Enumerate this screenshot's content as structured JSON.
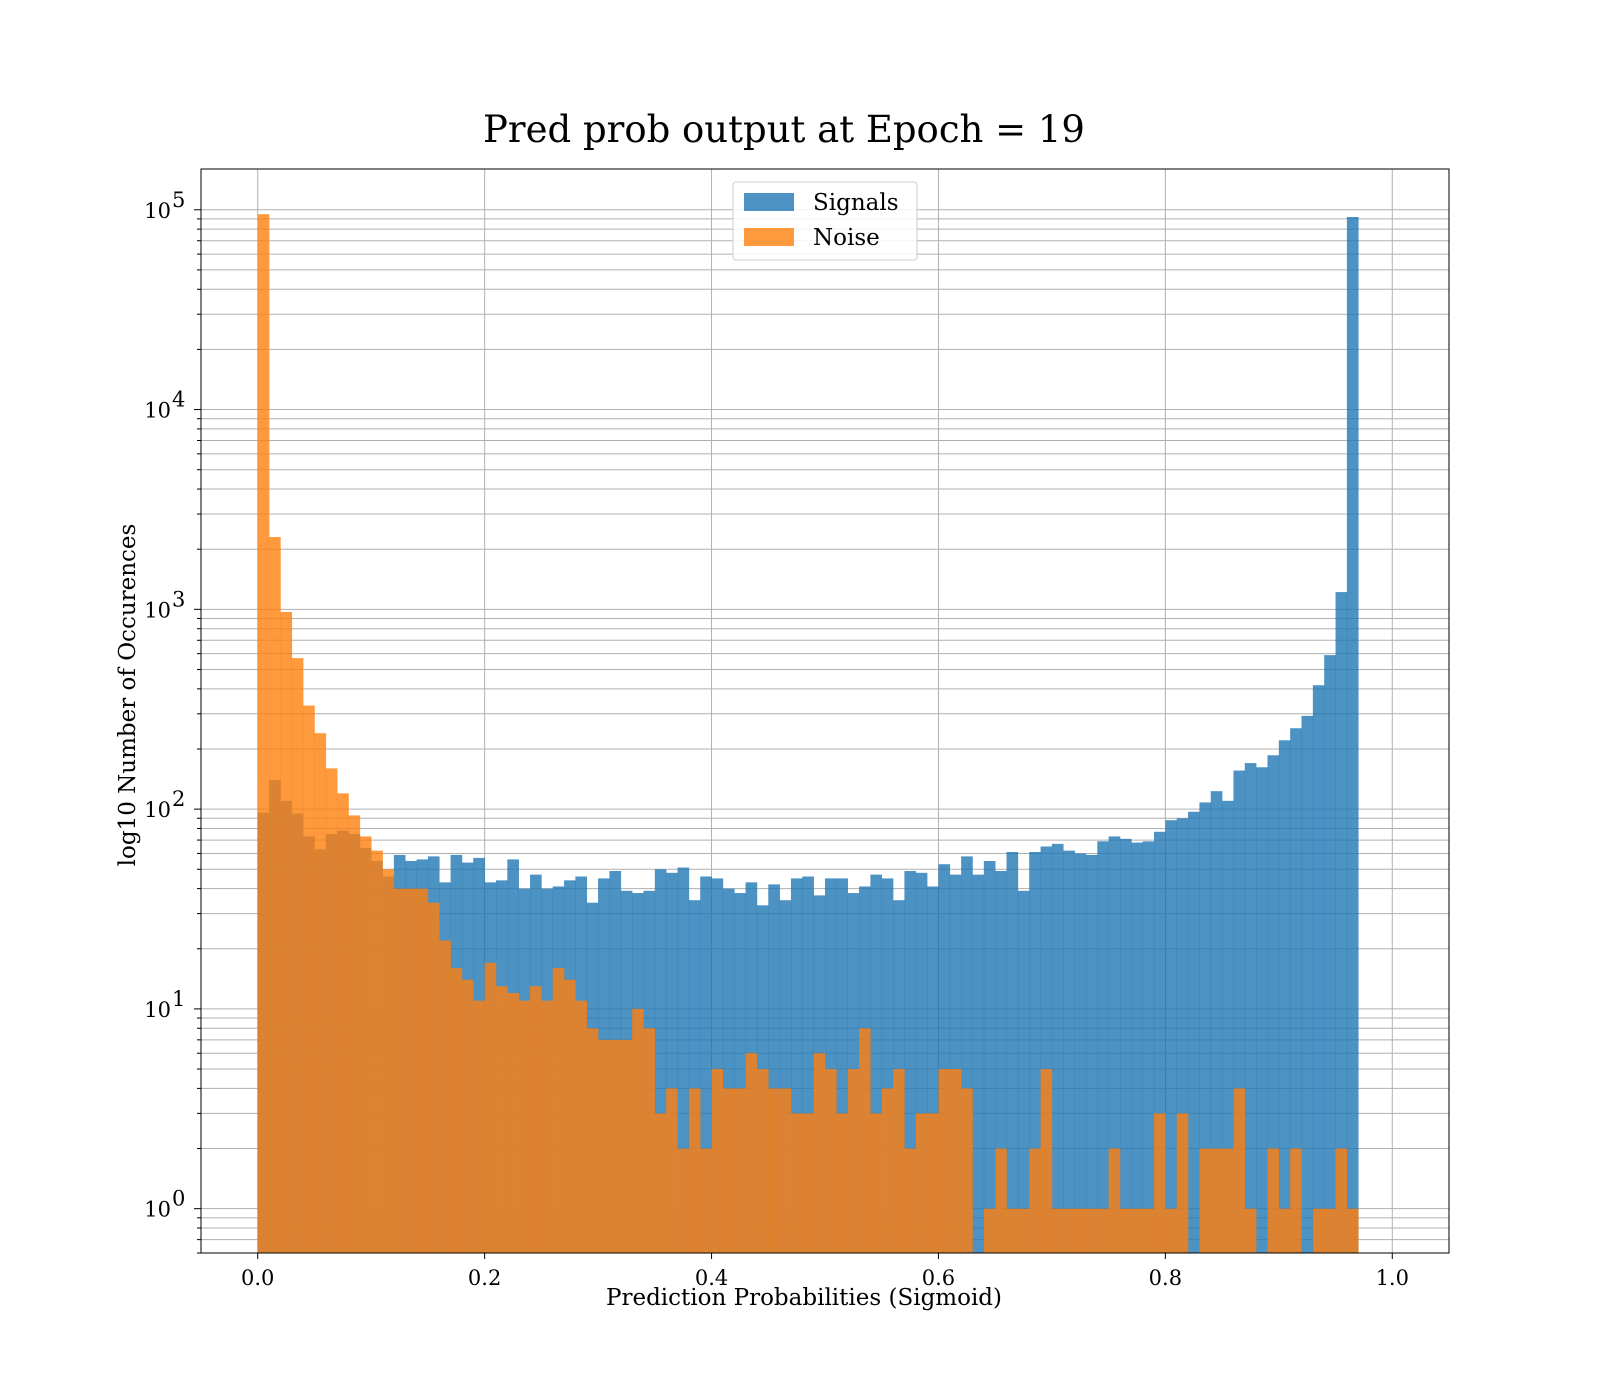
{
  "chart_data": {
    "type": "bar",
    "subtype": "histogram",
    "title": "Pred prob output at Epoch = 19",
    "xlabel": "Prediction Probabilities (Sigmoid)",
    "ylabel": "log10 Number of Occurences",
    "xlim": [
      -0.05,
      1.05
    ],
    "ylim": [
      0.6,
      160000
    ],
    "yscale": "log",
    "grid": true,
    "legend_position": "upper center",
    "x_ticks": [
      "0.0",
      "0.2",
      "0.4",
      "0.6",
      "0.8",
      "1.0"
    ],
    "x_tick_values": [
      0.0,
      0.2,
      0.4,
      0.6,
      0.8,
      1.0
    ],
    "y_ticks": [
      {
        "base": "10",
        "exp": "0",
        "value": 1
      },
      {
        "base": "10",
        "exp": "1",
        "value": 10
      },
      {
        "base": "10",
        "exp": "2",
        "value": 100
      },
      {
        "base": "10",
        "exp": "3",
        "value": 1000
      },
      {
        "base": "10",
        "exp": "4",
        "value": 10000
      },
      {
        "base": "10",
        "exp": "5",
        "value": 100000
      }
    ],
    "bin_start": 0.0,
    "bin_width": 0.01,
    "series": [
      {
        "name": "Signals",
        "color": "#1f77b4",
        "opacity": 0.8,
        "values": [
          96,
          140,
          110,
          95,
          73,
          63,
          75,
          78,
          75,
          64,
          55,
          46,
          59,
          55,
          56,
          58,
          43,
          59,
          54,
          57,
          43,
          44,
          56,
          40,
          47,
          40,
          41,
          44,
          46,
          34,
          45,
          49,
          39,
          38,
          39,
          50,
          48,
          51,
          35,
          46,
          45,
          40,
          38,
          43,
          33,
          42,
          35,
          45,
          46,
          37,
          45,
          45,
          38,
          41,
          47,
          45,
          35,
          49,
          48,
          41,
          53,
          47,
          58,
          47,
          55,
          49,
          61,
          39,
          61,
          65,
          67,
          62,
          60,
          59,
          69,
          73,
          71,
          68,
          69,
          77,
          88,
          90,
          97,
          108,
          123,
          110,
          156,
          170,
          162,
          186,
          221,
          254,
          293,
          417,
          590,
          1220,
          92000
        ]
      },
      {
        "name": "Noise",
        "color": "#ff7f0e",
        "opacity": 0.8,
        "values": [
          95000,
          2300,
          970,
          570,
          330,
          240,
          160,
          120,
          93,
          73,
          62,
          50,
          40,
          40,
          40,
          34,
          22,
          16,
          14,
          11,
          17,
          13,
          12,
          11,
          13,
          11,
          16,
          14,
          11,
          8,
          7,
          7,
          7,
          10,
          8,
          3,
          4,
          2,
          4,
          2,
          5,
          4,
          4,
          6,
          5,
          4,
          4,
          3,
          3,
          6,
          5,
          3,
          5,
          8,
          3,
          4,
          5,
          2,
          3,
          3,
          5,
          5,
          4,
          0,
          1,
          2,
          1,
          1,
          2,
          5,
          1,
          1,
          1,
          1,
          1,
          2,
          1,
          1,
          1,
          3,
          1,
          3,
          0,
          2,
          2,
          2,
          4,
          1,
          0,
          2,
          1,
          2,
          0,
          1,
          1,
          2,
          1
        ]
      }
    ]
  }
}
